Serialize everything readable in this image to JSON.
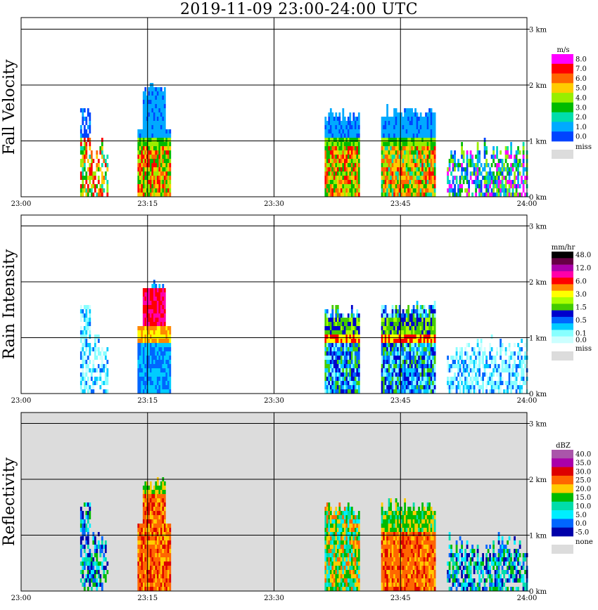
{
  "title": "2019-11-09   23:00-24:00 UTC",
  "chart_data": [
    {
      "type": "heatmap",
      "id": "fall",
      "ylabel": "Fall Velocity",
      "xlabel": "",
      "xticks": [
        "23:00",
        "23:15",
        "23:30",
        "23:45",
        "24:00"
      ],
      "yticks": [
        "0 km",
        "1 km",
        "2 km",
        "3 km"
      ],
      "xlim_minutes": [
        0,
        60
      ],
      "ylim_km": [
        0,
        3.2
      ],
      "legend_unit": "m/s",
      "legend_levels": [
        {
          "label": "8.0",
          "color": "#ff00ff"
        },
        {
          "label": "7.0",
          "color": "#ff0000"
        },
        {
          "label": "6.0",
          "color": "#ff6600"
        },
        {
          "label": "5.0",
          "color": "#ffcc00"
        },
        {
          "label": "4.0",
          "color": "#99ee00"
        },
        {
          "label": "3.0",
          "color": "#00bb00"
        },
        {
          "label": "2.0",
          "color": "#00ddaa"
        },
        {
          "label": "1.0",
          "color": "#00aaff"
        },
        {
          "label": "0.0",
          "color": "#0044ff"
        }
      ],
      "legend_missing": {
        "label": "miss",
        "color": "#dcdcdc"
      },
      "background": "#ffffff",
      "echoes": [
        {
          "start_min": 7.0,
          "end_min": 10.2,
          "top_km": 1.55,
          "type": "rainy"
        },
        {
          "start_min": 13.8,
          "end_min": 17.7,
          "top_km": 2.0,
          "type": "tower"
        },
        {
          "start_min": 36.0,
          "end_min": 40.1,
          "top_km": 1.55,
          "type": "cell"
        },
        {
          "start_min": 42.7,
          "end_min": 49.1,
          "top_km": 1.6,
          "type": "block"
        },
        {
          "start_min": 50.5,
          "end_min": 59.9,
          "top_km": 1.0,
          "type": "patchy"
        }
      ]
    },
    {
      "type": "heatmap",
      "id": "rain",
      "ylabel": "Rain Intensity",
      "xlabel": "",
      "xticks": [
        "23:00",
        "23:15",
        "23:30",
        "23:45",
        "24:00"
      ],
      "yticks": [
        "0 km",
        "1 km",
        "2 km",
        "3 km"
      ],
      "xlim_minutes": [
        0,
        60
      ],
      "ylim_km": [
        0,
        3.2
      ],
      "legend_unit": "mm/hr",
      "legend_levels": [
        {
          "label": "48.0",
          "color": "#000000"
        },
        {
          "label": "",
          "color": "#660044"
        },
        {
          "label": "12.0",
          "color": "#aa00aa"
        },
        {
          "label": "",
          "color": "#ff00aa"
        },
        {
          "label": "6.0",
          "color": "#ff0000"
        },
        {
          "label": "",
          "color": "#ff8800"
        },
        {
          "label": "3.0",
          "color": "#ffff00"
        },
        {
          "label": "",
          "color": "#aaff00"
        },
        {
          "label": "1.5",
          "color": "#44cc00"
        },
        {
          "label": "",
          "color": "#0000cc"
        },
        {
          "label": "0.5",
          "color": "#0066ff"
        },
        {
          "label": "",
          "color": "#00ccff"
        },
        {
          "label": "0.1",
          "color": "#88ffff"
        },
        {
          "label": "0.0",
          "color": "#ccffff"
        }
      ],
      "legend_missing": {
        "label": "miss",
        "color": "#dcdcdc"
      },
      "background": "#ffffff",
      "echoes": [
        {
          "start_min": 7.0,
          "end_min": 10.2,
          "top_km": 1.55,
          "type": "rainy"
        },
        {
          "start_min": 13.8,
          "end_min": 17.7,
          "top_km": 2.0,
          "type": "tower"
        },
        {
          "start_min": 36.0,
          "end_min": 40.1,
          "top_km": 1.55,
          "type": "cell"
        },
        {
          "start_min": 42.7,
          "end_min": 49.1,
          "top_km": 1.6,
          "type": "block"
        },
        {
          "start_min": 50.5,
          "end_min": 59.9,
          "top_km": 1.0,
          "type": "patchy"
        }
      ]
    },
    {
      "type": "heatmap",
      "id": "refl",
      "ylabel": "Reflectivity",
      "xlabel": "",
      "xticks": [
        "23:00",
        "23:15",
        "23:30",
        "23:45",
        "24:00"
      ],
      "yticks": [
        "0 km",
        "1 km",
        "2 km",
        "3 km"
      ],
      "xlim_minutes": [
        0,
        60
      ],
      "ylim_km": [
        0,
        3.2
      ],
      "legend_unit": "dBZ",
      "legend_levels": [
        {
          "label": "40.0",
          "color": "#aa55aa"
        },
        {
          "label": "35.0",
          "color": "#aa00aa"
        },
        {
          "label": "30.0",
          "color": "#dd0000"
        },
        {
          "label": "25.0",
          "color": "#ff6600"
        },
        {
          "label": "20.0",
          "color": "#ffcc00"
        },
        {
          "label": "15.0",
          "color": "#00bb00"
        },
        {
          "label": "10.0",
          "color": "#00ddaa"
        },
        {
          "label": "5.0",
          "color": "#00eeff"
        },
        {
          "label": "0.0",
          "color": "#0066ff"
        },
        {
          "label": "-5.0",
          "color": "#0000aa"
        }
      ],
      "legend_missing": {
        "label": "none",
        "color": "#dcdcdc"
      },
      "background": "#dcdcdc",
      "echoes": [
        {
          "start_min": 7.0,
          "end_min": 10.2,
          "top_km": 1.55,
          "type": "rainy"
        },
        {
          "start_min": 13.8,
          "end_min": 17.7,
          "top_km": 2.0,
          "type": "tower"
        },
        {
          "start_min": 36.0,
          "end_min": 40.1,
          "top_km": 1.55,
          "type": "cell"
        },
        {
          "start_min": 42.7,
          "end_min": 49.1,
          "top_km": 1.6,
          "type": "block"
        },
        {
          "start_min": 50.5,
          "end_min": 59.9,
          "top_km": 1.0,
          "type": "patchy"
        }
      ]
    }
  ]
}
